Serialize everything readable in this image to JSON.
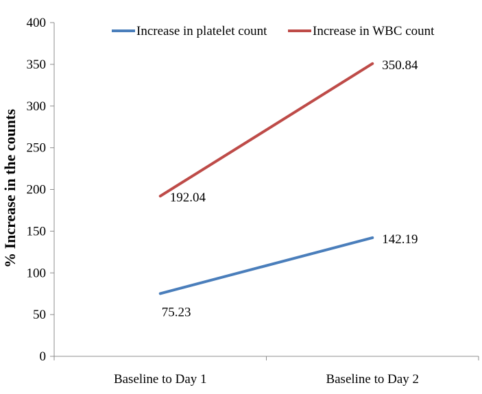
{
  "chart_data": {
    "type": "line",
    "title": "",
    "xlabel": "",
    "ylabel": "% Increase in the counts",
    "categories": [
      "Baseline to Day 1",
      "Baseline to Day 2"
    ],
    "ylim": [
      0,
      400
    ],
    "yticks": [
      0,
      50,
      100,
      150,
      200,
      250,
      300,
      350,
      400
    ],
    "grid": false,
    "legend_position": "top",
    "series": [
      {
        "name": "Increase in platelet count",
        "values": [
          75.23,
          142.19
        ],
        "labels": [
          "75.23",
          "142.19"
        ],
        "color": "#4a7ebb"
      },
      {
        "name": "Increase in WBC count",
        "values": [
          192.04,
          350.84
        ],
        "labels": [
          "192.04",
          "350.84"
        ],
        "color": "#be4b48"
      }
    ]
  }
}
